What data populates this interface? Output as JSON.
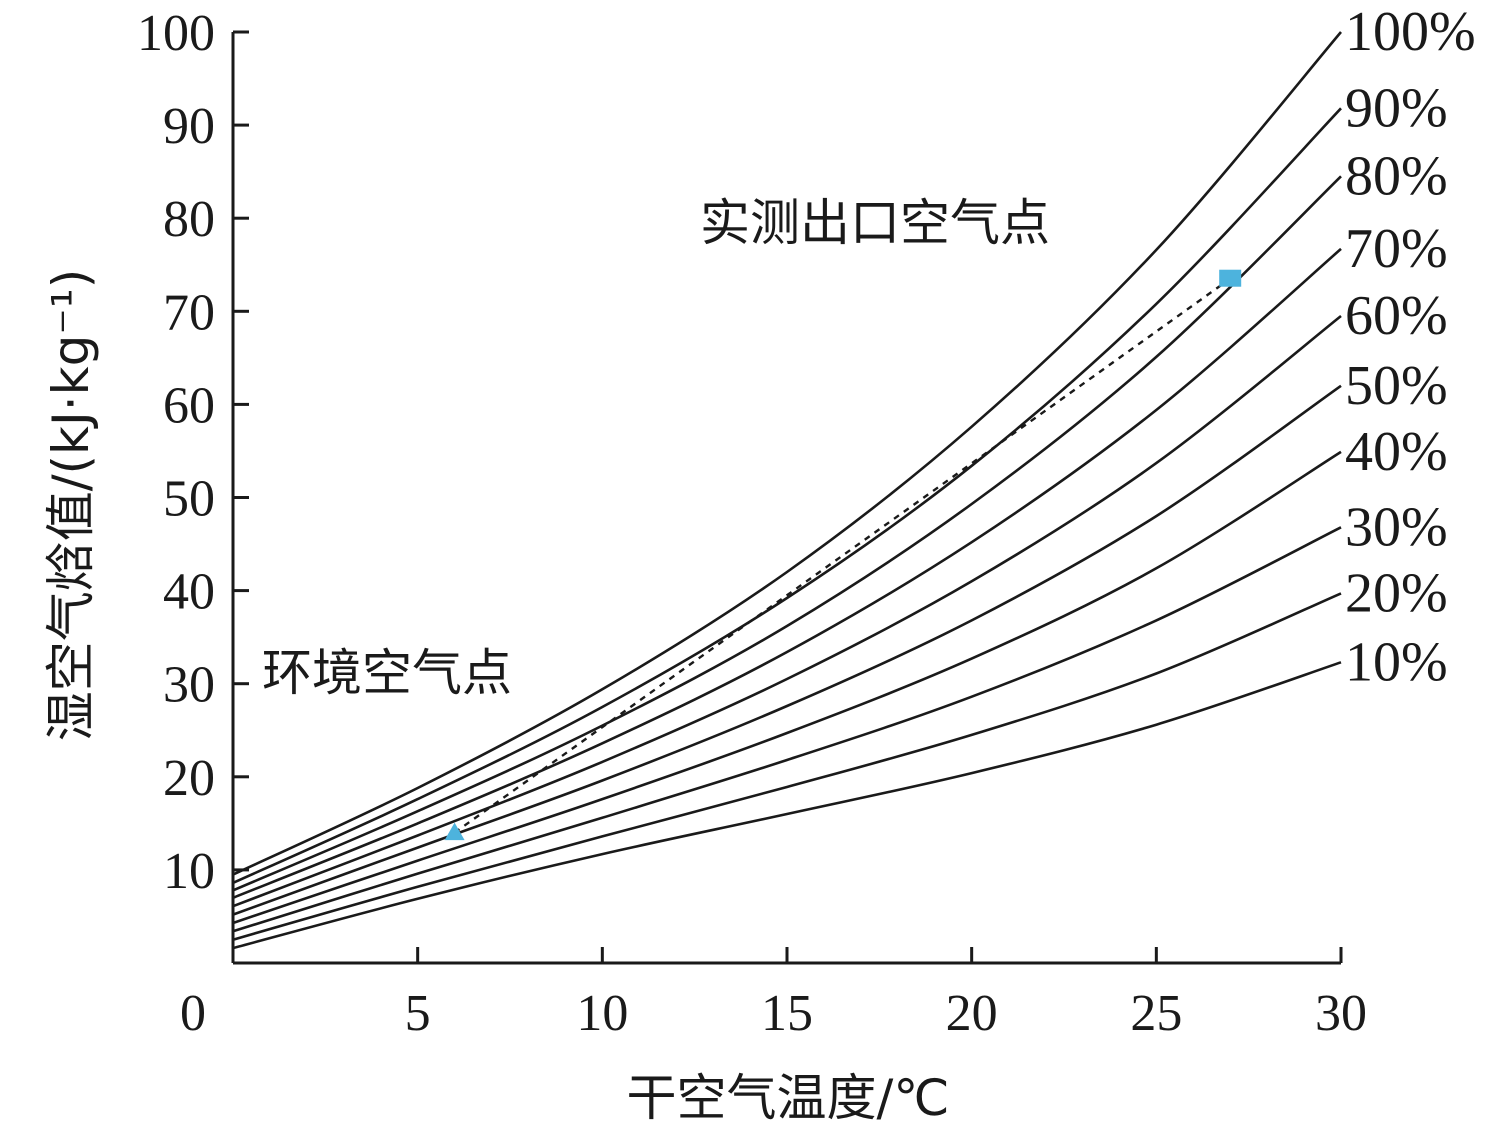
{
  "chart_data": {
    "type": "line",
    "xlabel": "干空气温度/℃",
    "ylabel": "湿空气焓值/(kJ·kg⁻¹)",
    "xlim": [
      0,
      30
    ],
    "ylim": [
      0,
      100
    ],
    "x_ticks": [
      "0",
      "5",
      "10",
      "15",
      "20",
      "25",
      "30"
    ],
    "y_ticks": [
      "10",
      "20",
      "30",
      "40",
      "50",
      "60",
      "70",
      "80",
      "90",
      "100"
    ],
    "grid": false,
    "series": [
      {
        "name": "100%",
        "x": [
          0,
          5,
          10,
          15,
          20,
          25,
          30
        ],
        "y": [
          9.5,
          18.8,
          29.4,
          42.0,
          57.6,
          76.6,
          100.0
        ]
      },
      {
        "name": "90%",
        "x": [
          0,
          5,
          10,
          15,
          20,
          25,
          30
        ],
        "y": [
          8.6,
          17.6,
          27.5,
          39.2,
          53.4,
          70.8,
          91.8
        ]
      },
      {
        "name": "80%",
        "x": [
          0,
          5,
          10,
          15,
          20,
          25,
          30
        ],
        "y": [
          7.8,
          16.3,
          25.5,
          36.2,
          49.3,
          65.1,
          84.5
        ]
      },
      {
        "name": "70%",
        "x": [
          0,
          5,
          10,
          15,
          20,
          25,
          30
        ],
        "y": [
          7.0,
          15.0,
          23.6,
          33.4,
          45.2,
          59.4,
          76.7
        ]
      },
      {
        "name": "60%",
        "x": [
          0,
          5,
          10,
          15,
          20,
          25,
          30
        ],
        "y": [
          6.1,
          13.7,
          21.6,
          30.5,
          41.0,
          53.7,
          69.5
        ]
      },
      {
        "name": "50%",
        "x": [
          0,
          5,
          10,
          15,
          20,
          25,
          30
        ],
        "y": [
          5.2,
          12.4,
          19.6,
          27.6,
          36.8,
          48.0,
          62.0
        ]
      },
      {
        "name": "40%",
        "x": [
          0,
          5,
          10,
          15,
          20,
          25,
          30
        ],
        "y": [
          4.3,
          11.0,
          17.6,
          24.7,
          32.7,
          42.4,
          54.9
        ]
      },
      {
        "name": "30%",
        "x": [
          0,
          5,
          10,
          15,
          20,
          25,
          30
        ],
        "y": [
          3.4,
          9.6,
          15.6,
          21.8,
          28.6,
          36.8,
          46.8
        ]
      },
      {
        "name": "20%",
        "x": [
          0,
          5,
          10,
          15,
          20,
          25,
          30
        ],
        "y": [
          2.5,
          8.2,
          13.6,
          18.9,
          24.5,
          31.1,
          39.7
        ]
      },
      {
        "name": "10%",
        "x": [
          0,
          5,
          10,
          15,
          20,
          25,
          30
        ],
        "y": [
          1.6,
          6.9,
          11.7,
          16.0,
          20.4,
          25.6,
          32.3
        ]
      }
    ],
    "points": [
      {
        "label": "环境空气点",
        "x": 6.0,
        "y": 14.0,
        "marker": "triangle",
        "color": "#4db3dd"
      },
      {
        "label": "实测出口空气点",
        "x": 27.0,
        "y": 73.5,
        "marker": "square",
        "color": "#4db3dd"
      }
    ],
    "process_line": {
      "from": [
        6.0,
        14.0
      ],
      "to": [
        27.0,
        73.5
      ],
      "style": "dotted"
    }
  }
}
